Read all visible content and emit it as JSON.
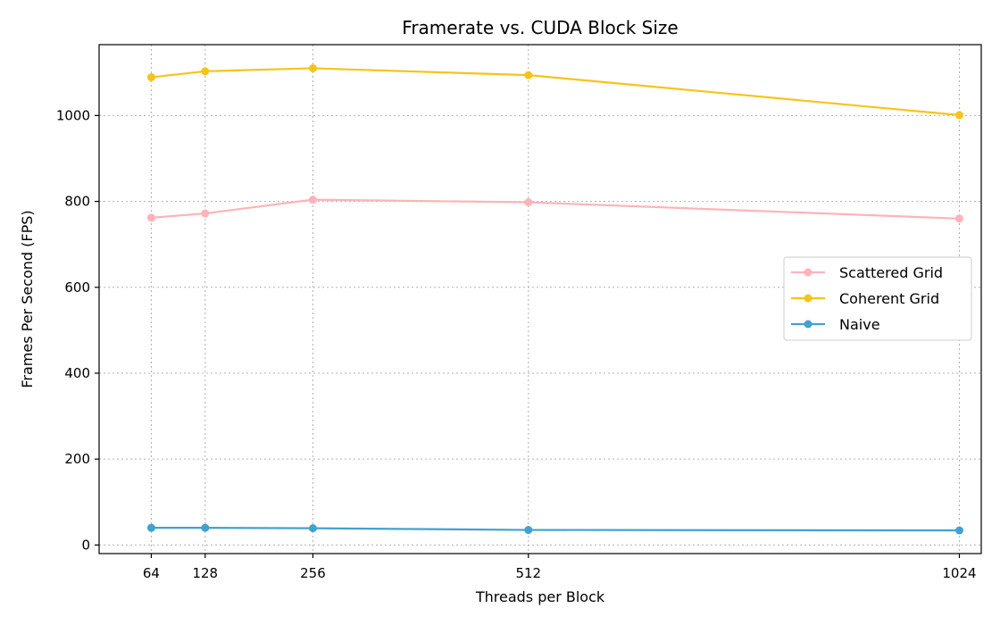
{
  "chart_data": {
    "type": "line",
    "title": "Framerate vs. CUDA Block Size",
    "xlabel": "Threads per Block",
    "ylabel": "Frames Per Second (FPS)",
    "x": [
      64,
      128,
      256,
      512,
      1024
    ],
    "x_ticks": [
      "64",
      "128",
      "256",
      "512",
      "1024"
    ],
    "xlim": [
      2,
      1050
    ],
    "y_ticks": [
      0,
      200,
      400,
      600,
      800,
      1000
    ],
    "ylim": [
      -20,
      1165
    ],
    "grid": true,
    "legend_position": "center-right",
    "series": [
      {
        "name": "Scattered Grid",
        "color": "#ffb3b8",
        "values": [
          762,
          772,
          804,
          798,
          760
        ]
      },
      {
        "name": "Coherent Grid",
        "color": "#f7c31a",
        "values": [
          1089,
          1103,
          1110,
          1094,
          1001
        ]
      },
      {
        "name": "Naive",
        "color": "#41a1d3",
        "values": [
          40,
          40,
          39,
          35,
          34
        ]
      }
    ]
  }
}
